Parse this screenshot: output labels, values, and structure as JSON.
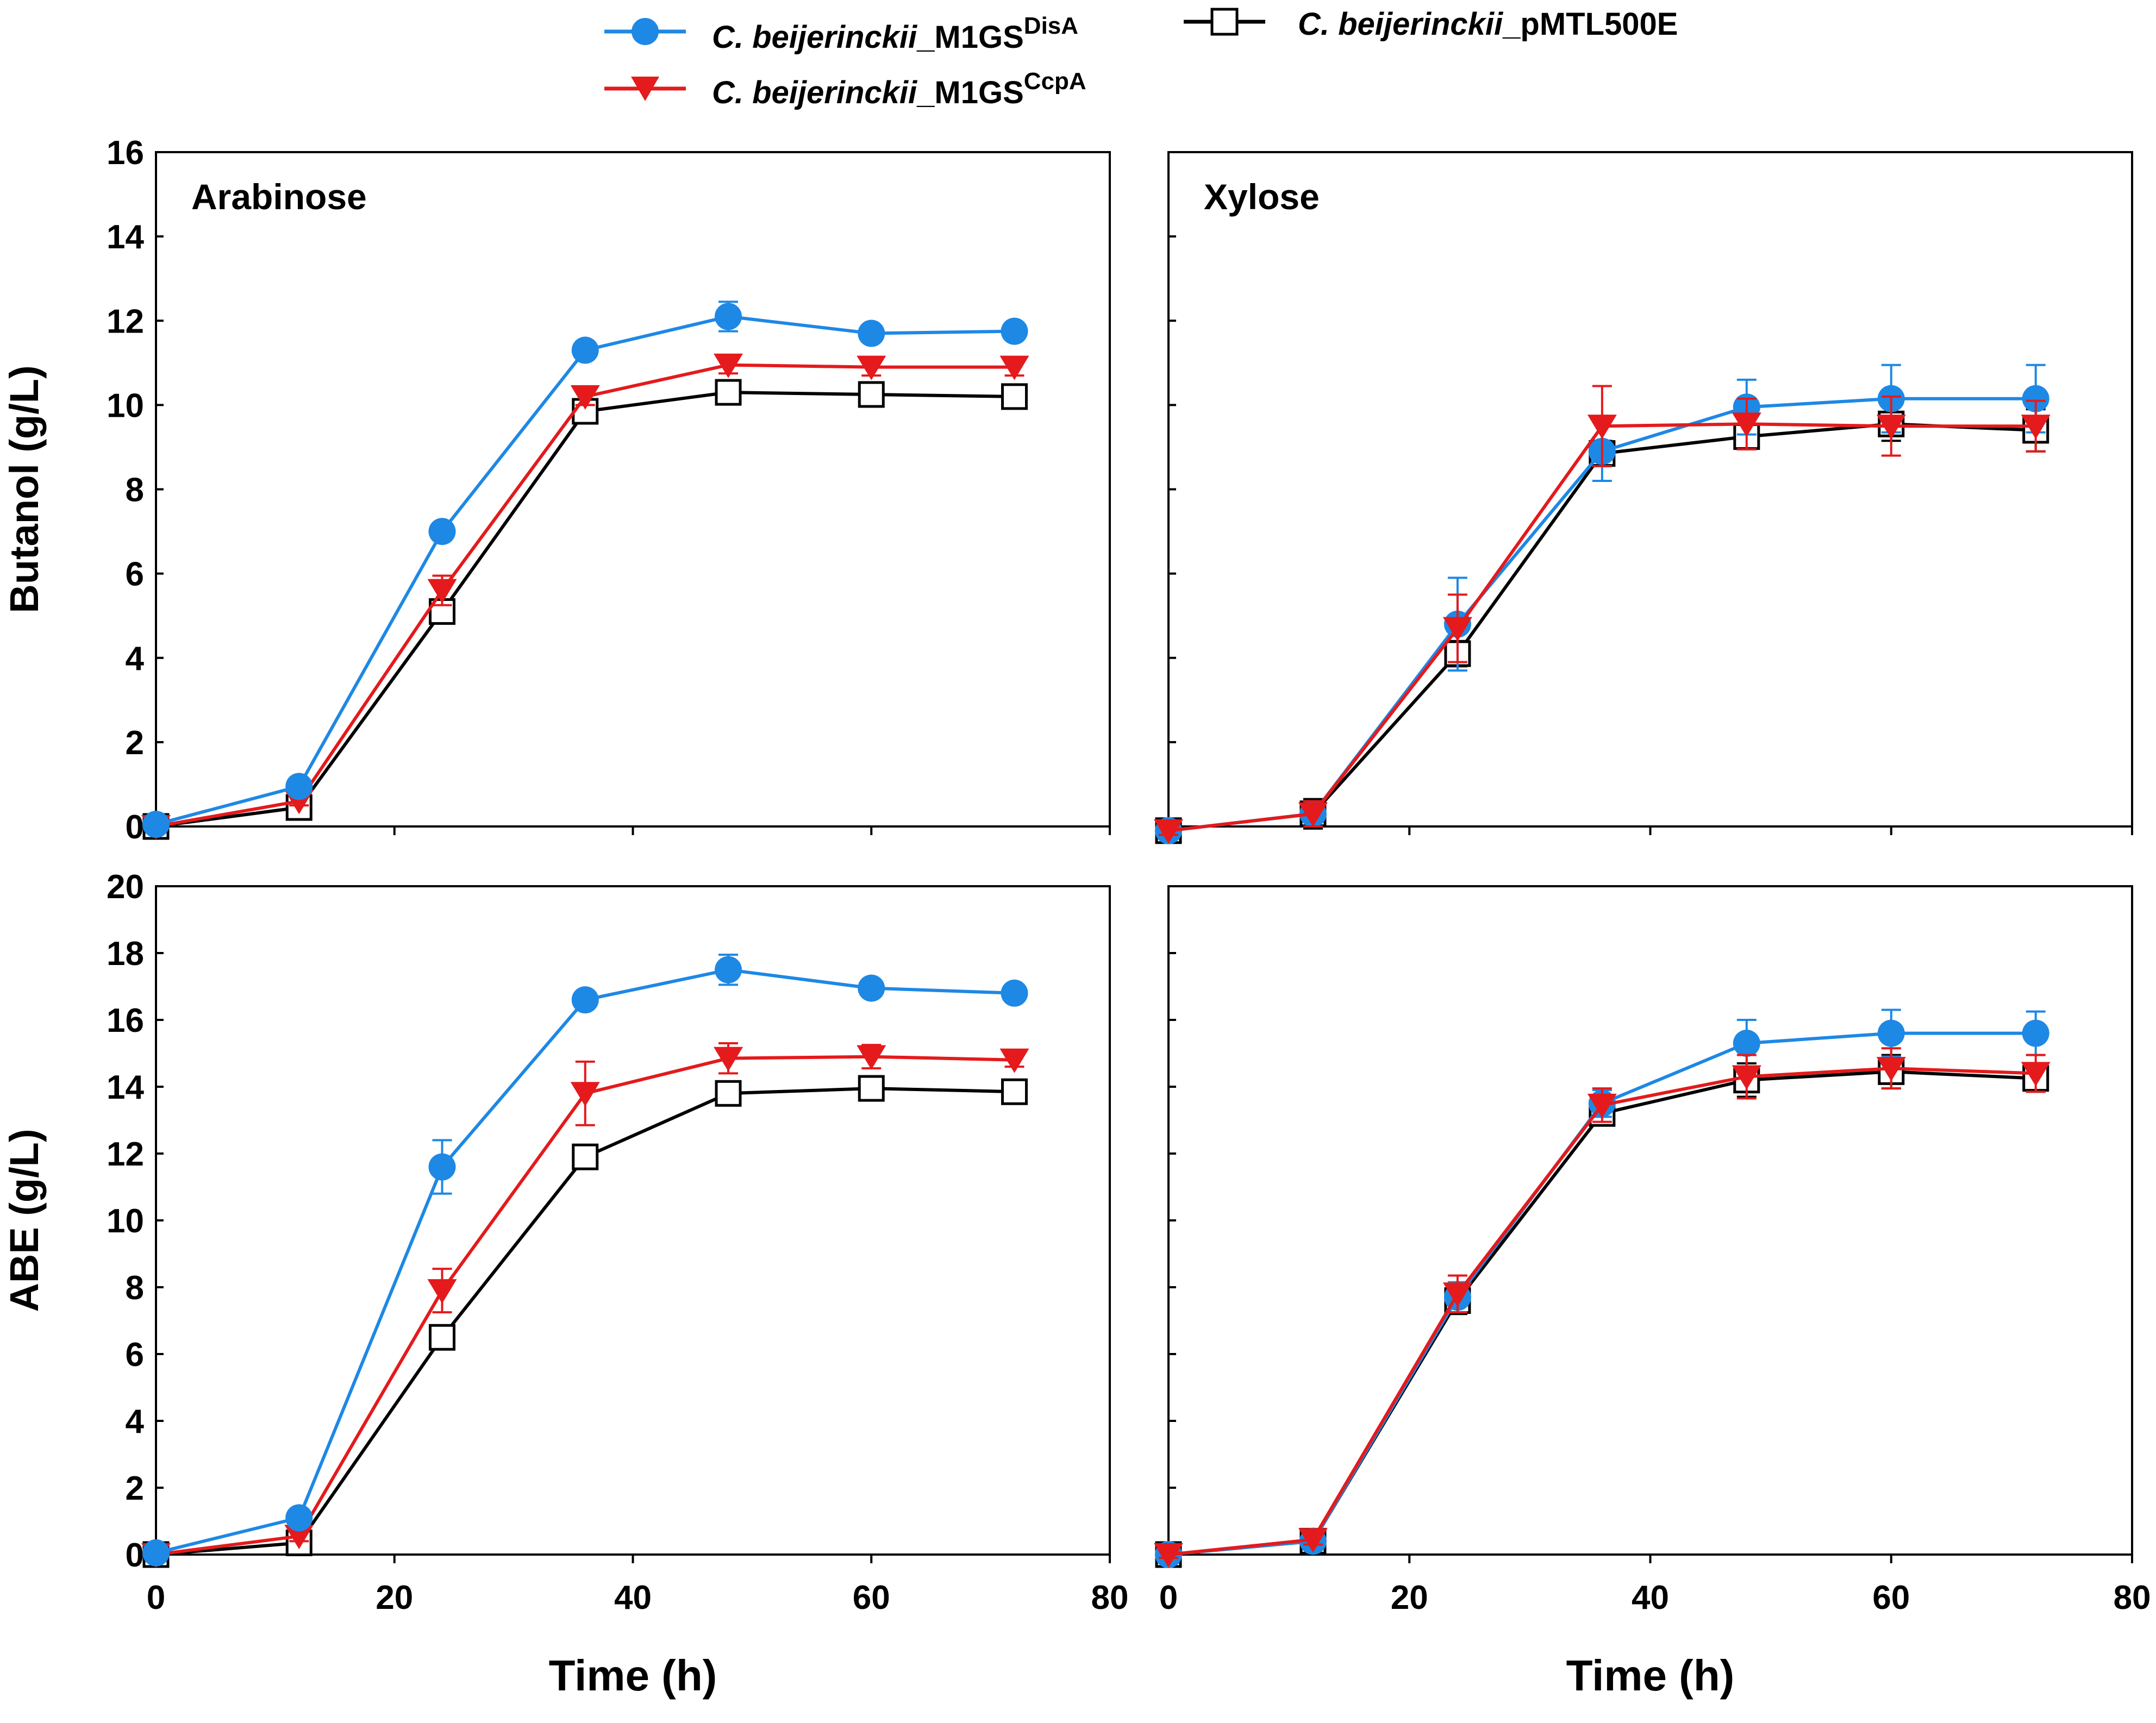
{
  "legend": {
    "items": [
      {
        "series": "disa",
        "italic": "C. beijerinckii",
        "rest": "_M1GS",
        "sup": "DisA"
      },
      {
        "series": "pmtl",
        "italic": "C. beijerinckii",
        "rest": "_pMTL500E",
        "sup": ""
      },
      {
        "series": "ccpa",
        "italic": "C. beijerinckii",
        "rest": "_M1GS",
        "sup": "CcpA"
      }
    ]
  },
  "series_styles": {
    "disa": {
      "name": "C. beijerinckii_M1GSDisA",
      "color": "#1E88E5",
      "marker": "circle"
    },
    "ccpa": {
      "name": "C. beijerinckii_M1GSCcpA",
      "color": "#E41A1C",
      "marker": "triangle-down"
    },
    "pmtl": {
      "name": "C. beijerinckii_pMTL500E",
      "color": "#000000",
      "marker": "open-square"
    }
  },
  "chart_data": [
    {
      "id": "butanol-arabinose",
      "type": "line",
      "title": "Arabinose",
      "ylabel": "Butanol (g/L)",
      "xlabel": "",
      "xlim": [
        0,
        80
      ],
      "ylim": [
        0,
        16
      ],
      "yticks": [
        0,
        2,
        4,
        6,
        8,
        10,
        12,
        14,
        16
      ],
      "xticks": [
        0,
        20,
        40,
        60,
        80
      ],
      "show_xtick_labels": false,
      "show_ytick_labels": true,
      "x": [
        0,
        12,
        24,
        36,
        48,
        60,
        72
      ],
      "series": [
        {
          "key": "pmtl",
          "values": [
            0.0,
            0.45,
            5.1,
            9.85,
            10.3,
            10.25,
            10.2
          ],
          "err": [
            0.1,
            0.1,
            0.25,
            0.15,
            0.2,
            0.2,
            0.15
          ]
        },
        {
          "key": "ccpa",
          "values": [
            0.0,
            0.6,
            5.6,
            10.2,
            10.95,
            10.9,
            10.9
          ],
          "err": [
            0.1,
            0.1,
            0.35,
            0.2,
            0.2,
            0.2,
            0.2
          ]
        },
        {
          "key": "disa",
          "values": [
            0.05,
            0.95,
            7.0,
            11.3,
            12.1,
            11.7,
            11.75
          ],
          "err": [
            0.1,
            0.1,
            0.15,
            0.2,
            0.35,
            0.15,
            0.15
          ]
        }
      ]
    },
    {
      "id": "butanol-xylose",
      "type": "line",
      "title": "Xylose",
      "ylabel": "",
      "xlabel": "",
      "xlim": [
        0,
        80
      ],
      "ylim": [
        0,
        16
      ],
      "yticks": [
        0,
        2,
        4,
        6,
        8,
        10,
        12,
        14,
        16
      ],
      "xticks": [
        0,
        20,
        40,
        60,
        80
      ],
      "show_xtick_labels": false,
      "show_ytick_labels": false,
      "x": [
        0,
        12,
        24,
        36,
        48,
        60,
        72
      ],
      "series": [
        {
          "key": "pmtl",
          "values": [
            -0.1,
            0.3,
            4.1,
            8.85,
            9.25,
            9.55,
            9.4
          ],
          "err": [
            0.1,
            0.35,
            0.3,
            0.3,
            0.3,
            0.4,
            0.5
          ]
        },
        {
          "key": "disa",
          "values": [
            -0.1,
            0.3,
            4.8,
            8.9,
            9.95,
            10.15,
            10.15
          ],
          "err": [
            0.1,
            0.3,
            1.1,
            0.7,
            0.65,
            0.8,
            0.8
          ]
        },
        {
          "key": "ccpa",
          "values": [
            -0.1,
            0.3,
            4.7,
            9.5,
            9.55,
            9.5,
            9.5
          ],
          "err": [
            0.1,
            0.3,
            0.8,
            0.95,
            0.6,
            0.7,
            0.6
          ]
        }
      ]
    },
    {
      "id": "abe-arabinose",
      "type": "line",
      "title": "",
      "ylabel": "ABE (g/L)",
      "xlabel": "Time (h)",
      "xlim": [
        0,
        80
      ],
      "ylim": [
        0,
        20
      ],
      "yticks": [
        0,
        2,
        4,
        6,
        8,
        10,
        12,
        14,
        16,
        18,
        20
      ],
      "xticks": [
        0,
        20,
        40,
        60,
        80
      ],
      "show_xtick_labels": true,
      "show_ytick_labels": true,
      "x": [
        0,
        12,
        24,
        36,
        48,
        60,
        72
      ],
      "series": [
        {
          "key": "pmtl",
          "values": [
            0.0,
            0.35,
            6.5,
            11.9,
            13.8,
            13.95,
            13.85
          ],
          "err": [
            0.1,
            0.1,
            0.2,
            0.25,
            0.25,
            0.25,
            0.2
          ]
        },
        {
          "key": "ccpa",
          "values": [
            0.0,
            0.55,
            7.9,
            13.8,
            14.85,
            14.9,
            14.8
          ],
          "err": [
            0.1,
            0.15,
            0.65,
            0.95,
            0.45,
            0.35,
            0.2
          ]
        },
        {
          "key": "disa",
          "values": [
            0.05,
            1.1,
            11.6,
            16.6,
            17.5,
            16.95,
            16.8
          ],
          "err": [
            0.1,
            0.15,
            0.8,
            0.2,
            0.45,
            0.2,
            0.2
          ]
        }
      ]
    },
    {
      "id": "abe-xylose",
      "type": "line",
      "title": "",
      "ylabel": "",
      "xlabel": "Time (h)",
      "xlim": [
        0,
        80
      ],
      "ylim": [
        0,
        20
      ],
      "yticks": [
        0,
        2,
        4,
        6,
        8,
        10,
        12,
        14,
        16,
        18,
        20
      ],
      "xticks": [
        0,
        20,
        40,
        60,
        80
      ],
      "show_xtick_labels": true,
      "show_ytick_labels": false,
      "x": [
        0,
        12,
        24,
        36,
        48,
        60,
        72
      ],
      "series": [
        {
          "key": "pmtl",
          "values": [
            0.0,
            0.4,
            7.6,
            13.2,
            14.2,
            14.45,
            14.25
          ],
          "err": [
            0.1,
            0.15,
            0.4,
            0.3,
            0.5,
            0.5,
            0.4
          ]
        },
        {
          "key": "disa",
          "values": [
            0.0,
            0.4,
            7.7,
            13.5,
            15.3,
            15.6,
            15.6
          ],
          "err": [
            0.1,
            0.15,
            0.45,
            0.4,
            0.7,
            0.7,
            0.65
          ]
        },
        {
          "key": "ccpa",
          "values": [
            0.0,
            0.45,
            7.8,
            13.45,
            14.3,
            14.55,
            14.4
          ],
          "err": [
            0.1,
            0.15,
            0.55,
            0.5,
            0.65,
            0.6,
            0.55
          ]
        }
      ]
    }
  ]
}
